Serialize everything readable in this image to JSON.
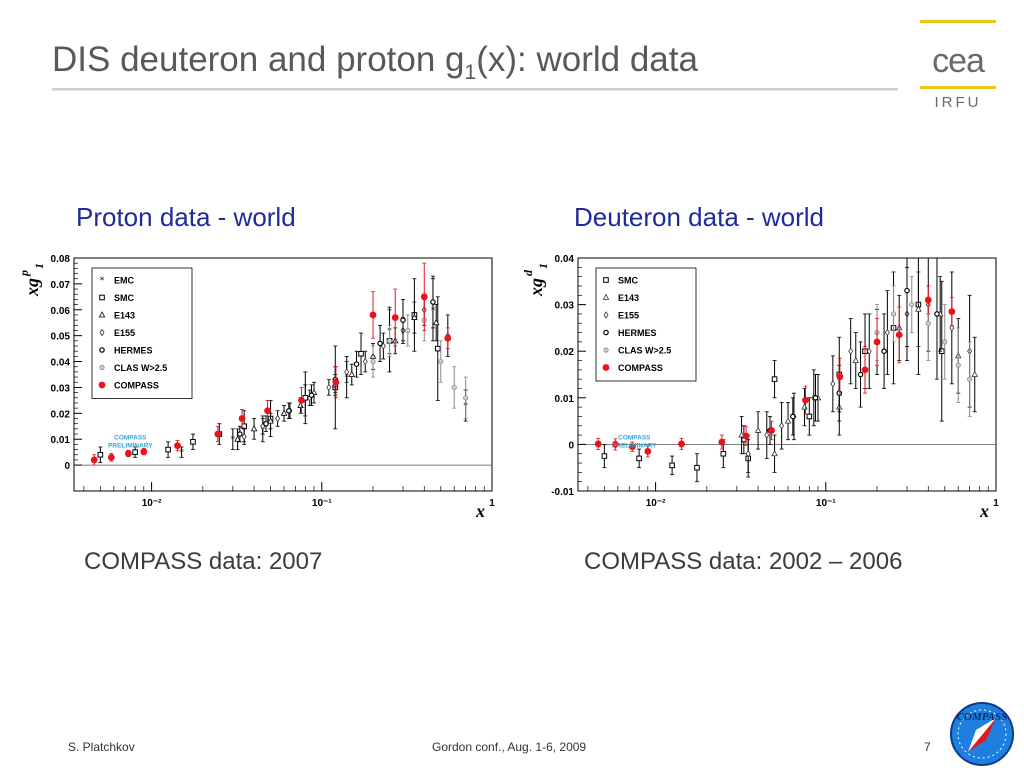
{
  "slide": {
    "title_main": "DIS deuteron and proton g",
    "title_sub": "1",
    "title_rest": "(x): world data",
    "logo_text": "cea",
    "logo_subtext": "IRFU",
    "footer_author": "S. Platchkov",
    "footer_conference": "Gordon conf., Aug. 1-6, 2009",
    "footer_page": "7",
    "badge_text": "COMPASS"
  },
  "panels": [
    {
      "title": "Proton data - world",
      "caption": "COMPASS data: 2007"
    },
    {
      "title": "Deuteron data - world",
      "caption": "COMPASS data: 2002 – 2006"
    }
  ],
  "chart_data": [
    {
      "type": "scatter",
      "ylabel_main": "xg",
      "ylabel_sup": "p",
      "ylabel_sub": "1",
      "xlabel": "x",
      "log_x": true,
      "xlim": [
        0.0035,
        1
      ],
      "ylim": [
        -0.01,
        0.08
      ],
      "xticks": [
        0.01,
        0.1,
        1
      ],
      "xtick_labels": [
        "10⁻²",
        "10⁻¹",
        "1"
      ],
      "yticks": [
        0,
        0.01,
        0.02,
        0.03,
        0.04,
        0.05,
        0.06,
        0.07,
        0.08
      ],
      "ytick_labels": [
        "0",
        "0.01",
        "0.02",
        "0.03",
        "0.04",
        "0.05",
        "0.06",
        "0.07",
        "0.08"
      ],
      "grid": false,
      "legend_position": "top-left",
      "annotation": "COMPASS PRELIMINARY",
      "series": [
        {
          "name": "EMC",
          "marker": "star",
          "color": "#000000",
          "points": [
            {
              "x": 0.015,
              "y": 0.005,
              "e": 0.002
            },
            {
              "x": 0.03,
              "y": 0.01,
              "e": 0.004
            },
            {
              "x": 0.045,
              "y": 0.014,
              "e": 0.005
            },
            {
              "x": 0.08,
              "y": 0.025,
              "e": 0.006
            },
            {
              "x": 0.14,
              "y": 0.034,
              "e": 0.008
            },
            {
              "x": 0.25,
              "y": 0.052,
              "e": 0.009
            },
            {
              "x": 0.45,
              "y": 0.06,
              "e": 0.012
            },
            {
              "x": 0.7,
              "y": 0.023,
              "e": 0.006
            }
          ]
        },
        {
          "name": "SMC",
          "marker": "square",
          "color": "#000000",
          "points": [
            {
              "x": 0.005,
              "y": 0.004,
              "e": 0.003
            },
            {
              "x": 0.008,
              "y": 0.005,
              "e": 0.002
            },
            {
              "x": 0.0125,
              "y": 0.006,
              "e": 0.003
            },
            {
              "x": 0.0175,
              "y": 0.009,
              "e": 0.003
            },
            {
              "x": 0.025,
              "y": 0.012,
              "e": 0.004
            },
            {
              "x": 0.035,
              "y": 0.015,
              "e": 0.006
            },
            {
              "x": 0.05,
              "y": 0.018,
              "e": 0.007
            },
            {
              "x": 0.08,
              "y": 0.026,
              "e": 0.01
            },
            {
              "x": 0.12,
              "y": 0.03,
              "e": 0.016
            },
            {
              "x": 0.17,
              "y": 0.043,
              "e": 0.008
            },
            {
              "x": 0.25,
              "y": 0.048,
              "e": 0.012
            },
            {
              "x": 0.35,
              "y": 0.058,
              "e": 0.014
            },
            {
              "x": 0.48,
              "y": 0.045,
              "e": 0.02
            }
          ]
        },
        {
          "name": "E143",
          "marker": "triangle",
          "color": "#000000",
          "points": [
            {
              "x": 0.032,
              "y": 0.01,
              "e": 0.004
            },
            {
              "x": 0.04,
              "y": 0.014,
              "e": 0.004
            },
            {
              "x": 0.05,
              "y": 0.017,
              "e": 0.003
            },
            {
              "x": 0.06,
              "y": 0.02,
              "e": 0.003
            },
            {
              "x": 0.075,
              "y": 0.023,
              "e": 0.003
            },
            {
              "x": 0.09,
              "y": 0.028,
              "e": 0.004
            },
            {
              "x": 0.12,
              "y": 0.031,
              "e": 0.004
            },
            {
              "x": 0.15,
              "y": 0.035,
              "e": 0.004
            },
            {
              "x": 0.2,
              "y": 0.042,
              "e": 0.005
            },
            {
              "x": 0.27,
              "y": 0.048,
              "e": 0.005
            },
            {
              "x": 0.35,
              "y": 0.057,
              "e": 0.006
            },
            {
              "x": 0.47,
              "y": 0.055,
              "e": 0.007
            }
          ]
        },
        {
          "name": "E155",
          "marker": "diamond",
          "color": "#333333",
          "points": [
            {
              "x": 0.035,
              "y": 0.011,
              "e": 0.003
            },
            {
              "x": 0.045,
              "y": 0.015,
              "e": 0.003
            },
            {
              "x": 0.055,
              "y": 0.018,
              "e": 0.003
            },
            {
              "x": 0.065,
              "y": 0.021,
              "e": 0.003
            },
            {
              "x": 0.085,
              "y": 0.026,
              "e": 0.003
            },
            {
              "x": 0.11,
              "y": 0.03,
              "e": 0.003
            },
            {
              "x": 0.14,
              "y": 0.036,
              "e": 0.004
            },
            {
              "x": 0.18,
              "y": 0.04,
              "e": 0.004
            },
            {
              "x": 0.23,
              "y": 0.046,
              "e": 0.005
            },
            {
              "x": 0.3,
              "y": 0.052,
              "e": 0.005
            },
            {
              "x": 0.4,
              "y": 0.06,
              "e": 0.006
            },
            {
              "x": 0.55,
              "y": 0.05,
              "e": 0.008
            }
          ]
        },
        {
          "name": "HERMES",
          "marker": "circle-open",
          "color": "#000000",
          "points": [
            {
              "x": 0.033,
              "y": 0.012,
              "e": 0.003
            },
            {
              "x": 0.047,
              "y": 0.016,
              "e": 0.003
            },
            {
              "x": 0.064,
              "y": 0.021,
              "e": 0.003
            },
            {
              "x": 0.087,
              "y": 0.027,
              "e": 0.004
            },
            {
              "x": 0.12,
              "y": 0.033,
              "e": 0.005
            },
            {
              "x": 0.16,
              "y": 0.039,
              "e": 0.005
            },
            {
              "x": 0.22,
              "y": 0.047,
              "e": 0.007
            },
            {
              "x": 0.3,
              "y": 0.056,
              "e": 0.008
            },
            {
              "x": 0.45,
              "y": 0.063,
              "e": 0.01
            }
          ]
        },
        {
          "name": "CLAS W>2.5",
          "marker": "circle-gray",
          "color": "#8a8a8a",
          "points": [
            {
              "x": 0.2,
              "y": 0.04,
              "e": 0.006
            },
            {
              "x": 0.25,
              "y": 0.048,
              "e": 0.006
            },
            {
              "x": 0.32,
              "y": 0.052,
              "e": 0.006
            },
            {
              "x": 0.4,
              "y": 0.056,
              "e": 0.008
            },
            {
              "x": 0.5,
              "y": 0.04,
              "e": 0.008
            },
            {
              "x": 0.6,
              "y": 0.03,
              "e": 0.008
            },
            {
              "x": 0.7,
              "y": 0.026,
              "e": 0.008
            }
          ]
        },
        {
          "name": "COMPASS",
          "marker": "dot-red",
          "color": "#e8131b",
          "points": [
            {
              "x": 0.0046,
              "y": 0.002,
              "e": 0.002
            },
            {
              "x": 0.0058,
              "y": 0.003,
              "e": 0.0015
            },
            {
              "x": 0.0073,
              "y": 0.0045,
              "e": 0.0012
            },
            {
              "x": 0.009,
              "y": 0.0052,
              "e": 0.0012
            },
            {
              "x": 0.0142,
              "y": 0.0075,
              "e": 0.002
            },
            {
              "x": 0.0245,
              "y": 0.012,
              "e": 0.003
            },
            {
              "x": 0.034,
              "y": 0.018,
              "e": 0.0035
            },
            {
              "x": 0.048,
              "y": 0.021,
              "e": 0.004
            },
            {
              "x": 0.076,
              "y": 0.025,
              "e": 0.005
            },
            {
              "x": 0.121,
              "y": 0.032,
              "e": 0.006
            },
            {
              "x": 0.2,
              "y": 0.058,
              "e": 0.009
            },
            {
              "x": 0.27,
              "y": 0.057,
              "e": 0.011
            },
            {
              "x": 0.4,
              "y": 0.065,
              "e": 0.013
            },
            {
              "x": 0.55,
              "y": 0.049,
              "e": 0.004
            }
          ]
        }
      ]
    },
    {
      "type": "scatter",
      "ylabel_main": "xg",
      "ylabel_sup": "d",
      "ylabel_sub": "1",
      "xlabel": "x",
      "log_x": true,
      "xlim": [
        0.0035,
        1
      ],
      "ylim": [
        -0.01,
        0.04
      ],
      "xticks": [
        0.01,
        0.1,
        1
      ],
      "xtick_labels": [
        "10⁻²",
        "10⁻¹",
        "1"
      ],
      "yticks": [
        -0.01,
        0,
        0.01,
        0.02,
        0.03,
        0.04
      ],
      "ytick_labels": [
        "-0.01",
        "0",
        "0.01",
        "0.02",
        "0.03",
        "0.04"
      ],
      "grid": false,
      "legend_position": "top-left",
      "annotation": "COMPASS PRELIMINARY",
      "series": [
        {
          "name": "SMC",
          "marker": "square",
          "color": "#000000",
          "points": [
            {
              "x": 0.005,
              "y": -0.0025,
              "e": 0.0025
            },
            {
              "x": 0.008,
              "y": -0.003,
              "e": 0.002
            },
            {
              "x": 0.0125,
              "y": -0.0045,
              "e": 0.002
            },
            {
              "x": 0.0175,
              "y": -0.005,
              "e": 0.003
            },
            {
              "x": 0.025,
              "y": -0.002,
              "e": 0.003
            },
            {
              "x": 0.035,
              "y": -0.003,
              "e": 0.004
            },
            {
              "x": 0.05,
              "y": 0.014,
              "e": 0.004
            },
            {
              "x": 0.08,
              "y": 0.006,
              "e": 0.004
            },
            {
              "x": 0.12,
              "y": 0.015,
              "e": 0.008
            },
            {
              "x": 0.17,
              "y": 0.02,
              "e": 0.008
            },
            {
              "x": 0.25,
              "y": 0.025,
              "e": 0.012
            },
            {
              "x": 0.35,
              "y": 0.03,
              "e": 0.015
            },
            {
              "x": 0.48,
              "y": 0.02,
              "e": 0.015
            }
          ]
        },
        {
          "name": "E143",
          "marker": "triangle",
          "color": "#333333",
          "points": [
            {
              "x": 0.032,
              "y": 0.002,
              "e": 0.004
            },
            {
              "x": 0.04,
              "y": 0.003,
              "e": 0.004
            },
            {
              "x": 0.05,
              "y": -0.002,
              "e": 0.004
            },
            {
              "x": 0.06,
              "y": 0.005,
              "e": 0.004
            },
            {
              "x": 0.075,
              "y": 0.008,
              "e": 0.004
            },
            {
              "x": 0.09,
              "y": 0.01,
              "e": 0.005
            },
            {
              "x": 0.12,
              "y": 0.008,
              "e": 0.006
            },
            {
              "x": 0.15,
              "y": 0.018,
              "e": 0.006
            },
            {
              "x": 0.2,
              "y": 0.022,
              "e": 0.007
            },
            {
              "x": 0.27,
              "y": 0.025,
              "e": 0.007
            },
            {
              "x": 0.35,
              "y": 0.029,
              "e": 0.008
            },
            {
              "x": 0.47,
              "y": 0.028,
              "e": 0.008
            },
            {
              "x": 0.6,
              "y": 0.019,
              "e": 0.008
            },
            {
              "x": 0.75,
              "y": 0.015,
              "e": 0.008
            }
          ]
        },
        {
          "name": "E155",
          "marker": "diamond",
          "color": "#333333",
          "points": [
            {
              "x": 0.035,
              "y": -0.002,
              "e": 0.004
            },
            {
              "x": 0.045,
              "y": 0.002,
              "e": 0.005
            },
            {
              "x": 0.055,
              "y": 0.004,
              "e": 0.005
            },
            {
              "x": 0.065,
              "y": 0.006,
              "e": 0.005
            },
            {
              "x": 0.085,
              "y": 0.01,
              "e": 0.006
            },
            {
              "x": 0.11,
              "y": 0.013,
              "e": 0.006
            },
            {
              "x": 0.14,
              "y": 0.02,
              "e": 0.007
            },
            {
              "x": 0.18,
              "y": 0.02,
              "e": 0.008
            },
            {
              "x": 0.23,
              "y": 0.024,
              "e": 0.009
            },
            {
              "x": 0.3,
              "y": 0.028,
              "e": 0.01
            },
            {
              "x": 0.4,
              "y": 0.03,
              "e": 0.01
            },
            {
              "x": 0.55,
              "y": 0.025,
              "e": 0.012
            },
            {
              "x": 0.7,
              "y": 0.02,
              "e": 0.012
            }
          ]
        },
        {
          "name": "HERMES",
          "marker": "circle-open",
          "color": "#000000",
          "points": [
            {
              "x": 0.033,
              "y": 0.001,
              "e": 0.003
            },
            {
              "x": 0.047,
              "y": 0.003,
              "e": 0.003
            },
            {
              "x": 0.064,
              "y": 0.006,
              "e": 0.004
            },
            {
              "x": 0.087,
              "y": 0.01,
              "e": 0.005
            },
            {
              "x": 0.12,
              "y": 0.011,
              "e": 0.006
            },
            {
              "x": 0.16,
              "y": 0.015,
              "e": 0.007
            },
            {
              "x": 0.22,
              "y": 0.02,
              "e": 0.008
            },
            {
              "x": 0.3,
              "y": 0.033,
              "e": 0.012
            },
            {
              "x": 0.45,
              "y": 0.028,
              "e": 0.014
            }
          ]
        },
        {
          "name": "CLAS W>2.5",
          "marker": "circle-gray",
          "color": "#8a8a8a",
          "points": [
            {
              "x": 0.2,
              "y": 0.024,
              "e": 0.006
            },
            {
              "x": 0.25,
              "y": 0.028,
              "e": 0.006
            },
            {
              "x": 0.32,
              "y": 0.03,
              "e": 0.006
            },
            {
              "x": 0.4,
              "y": 0.026,
              "e": 0.008
            },
            {
              "x": 0.5,
              "y": 0.022,
              "e": 0.008
            },
            {
              "x": 0.6,
              "y": 0.017,
              "e": 0.008
            },
            {
              "x": 0.7,
              "y": 0.014,
              "e": 0.008
            }
          ]
        },
        {
          "name": "COMPASS",
          "marker": "dot-red",
          "color": "#e8131b",
          "points": [
            {
              "x": 0.0046,
              "y": 0.0001,
              "e": 0.0012
            },
            {
              "x": 0.0058,
              "y": 0.0,
              "e": 0.0012
            },
            {
              "x": 0.0073,
              "y": -0.0005,
              "e": 0.001
            },
            {
              "x": 0.009,
              "y": -0.0015,
              "e": 0.0012
            },
            {
              "x": 0.0142,
              "y": 0.0001,
              "e": 0.0012
            },
            {
              "x": 0.0245,
              "y": 0.0005,
              "e": 0.0015
            },
            {
              "x": 0.034,
              "y": 0.0018,
              "e": 0.002
            },
            {
              "x": 0.048,
              "y": 0.003,
              "e": 0.002
            },
            {
              "x": 0.076,
              "y": 0.0095,
              "e": 0.003
            },
            {
              "x": 0.121,
              "y": 0.0145,
              "e": 0.004
            },
            {
              "x": 0.17,
              "y": 0.016,
              "e": 0.005
            },
            {
              "x": 0.2,
              "y": 0.022,
              "e": 0.005
            },
            {
              "x": 0.27,
              "y": 0.0235,
              "e": 0.006
            },
            {
              "x": 0.4,
              "y": 0.031,
              "e": 0.003
            },
            {
              "x": 0.55,
              "y": 0.0285,
              "e": 0.003
            }
          ]
        }
      ]
    }
  ]
}
